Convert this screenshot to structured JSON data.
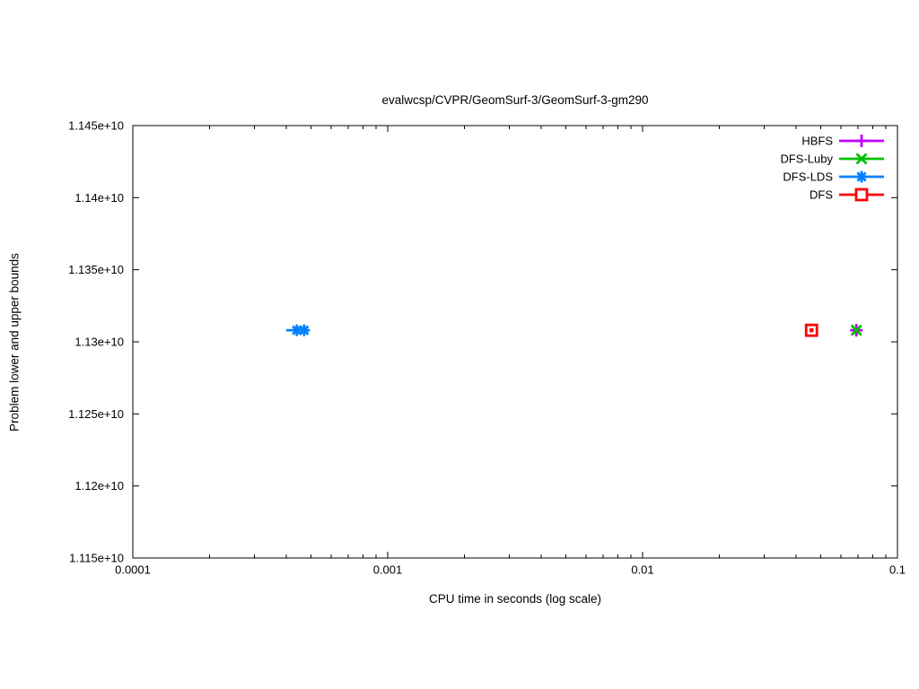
{
  "chart_data": {
    "type": "scatter",
    "title": "evalwcsp/CVPR/GeomSurf-3/GeomSurf-3-gm290",
    "xlabel": "CPU time in seconds (log scale)",
    "ylabel": "Problem lower and upper bounds",
    "x_scale": "log",
    "xlim": [
      0.0001,
      0.1
    ],
    "ylim": [
      11150000000,
      11450000000
    ],
    "grid": false,
    "legend_position": "top-right-inside",
    "xticks": [
      {
        "value": 0.0001,
        "label": "0.0001"
      },
      {
        "value": 0.001,
        "label": "0.001"
      },
      {
        "value": 0.01,
        "label": "0.01"
      },
      {
        "value": 0.1,
        "label": "0.1"
      }
    ],
    "yticks": [
      {
        "value": 11450000000,
        "label": "1.145e+10"
      },
      {
        "value": 11400000000,
        "label": "1.14e+10"
      },
      {
        "value": 11350000000,
        "label": "1.135e+10"
      },
      {
        "value": 11300000000,
        "label": "1.13e+10"
      },
      {
        "value": 11250000000,
        "label": "1.125e+10"
      },
      {
        "value": 11200000000,
        "label": "1.12e+10"
      },
      {
        "value": 11150000000,
        "label": "1.115e+10"
      }
    ],
    "series": [
      {
        "name": "HBFS",
        "color": "#c000ff",
        "marker": "plus",
        "line": false,
        "points": [
          [
            0.069,
            11308000000
          ]
        ]
      },
      {
        "name": "DFS-Luby",
        "color": "#00c000",
        "marker": "cross",
        "line": false,
        "points": [
          [
            0.069,
            11308000000
          ]
        ]
      },
      {
        "name": "DFS-LDS",
        "color": "#0080ff",
        "marker": "asterisk",
        "line": true,
        "marker_from_index": 1,
        "points": [
          [
            0.0004,
            11308000000
          ],
          [
            0.00044,
            11308000000
          ],
          [
            0.00047,
            11308000000
          ]
        ]
      },
      {
        "name": "DFS",
        "color": "#ff0000",
        "marker": "square",
        "center_dot": true,
        "line": false,
        "points": [
          [
            0.046,
            11308000000
          ]
        ]
      }
    ]
  }
}
